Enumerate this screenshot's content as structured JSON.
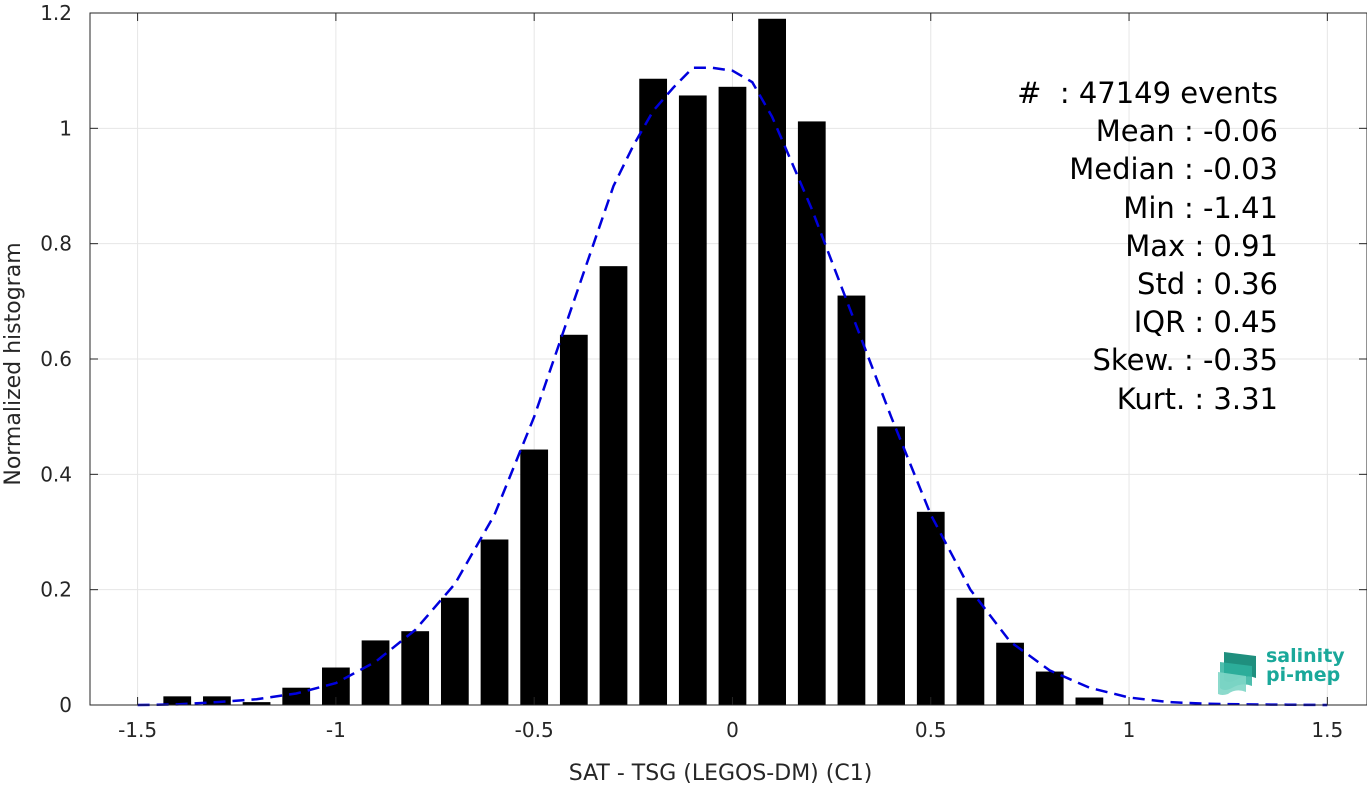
{
  "chart_data": {
    "type": "bar",
    "xlabel": "SAT - TSG (LEGOS-DM) (C1)",
    "ylabel": "Normalized histogram",
    "xlim": [
      -1.62,
      1.6
    ],
    "ylim": [
      0,
      1.2
    ],
    "xticks": [
      -1.5,
      -1,
      -0.5,
      0,
      0.5,
      1,
      1.5
    ],
    "xtick_labels": [
      "-1.5",
      "-1",
      "-0.5",
      "0",
      "0.5",
      "1",
      "1.5"
    ],
    "yticks": [
      0,
      0.2,
      0.4,
      0.6,
      0.8,
      1,
      1.2
    ],
    "ytick_labels": [
      "0",
      "0.2",
      "0.4",
      "0.6",
      "0.8",
      "1",
      "1.2"
    ],
    "grid": true,
    "bar_width": 0.07,
    "bars": {
      "x": [
        -1.4,
        -1.3,
        -1.2,
        -1.1,
        -1.0,
        -0.9,
        -0.8,
        -0.7,
        -0.6,
        -0.5,
        -0.4,
        -0.3,
        -0.2,
        -0.1,
        0.0,
        0.1,
        0.2,
        0.3,
        0.4,
        0.5,
        0.6,
        0.7,
        0.8,
        0.9
      ],
      "values": [
        0.015,
        0.015,
        0.005,
        0.03,
        0.065,
        0.112,
        0.128,
        0.186,
        0.287,
        0.443,
        0.642,
        0.761,
        1.086,
        1.057,
        1.072,
        1.19,
        1.012,
        0.71,
        0.483,
        0.335,
        0.186,
        0.108,
        0.058,
        0.013
      ],
      "color": "#000000"
    },
    "fit_curve": {
      "style": "dashed",
      "color": "#0000dd",
      "x": [
        -1.5,
        -1.4,
        -1.3,
        -1.2,
        -1.1,
        -1.0,
        -0.9,
        -0.8,
        -0.7,
        -0.6,
        -0.5,
        -0.4,
        -0.3,
        -0.25,
        -0.2,
        -0.15,
        -0.1,
        -0.05,
        0.0,
        0.05,
        0.1,
        0.15,
        0.2,
        0.25,
        0.3,
        0.4,
        0.5,
        0.6,
        0.7,
        0.8,
        0.9,
        1.0,
        1.1,
        1.2,
        1.3,
        1.4,
        1.5
      ],
      "values": [
        0.0,
        0.001,
        0.005,
        0.01,
        0.02,
        0.038,
        0.075,
        0.13,
        0.21,
        0.33,
        0.5,
        0.7,
        0.9,
        0.97,
        1.03,
        1.07,
        1.105,
        1.105,
        1.1,
        1.08,
        1.02,
        0.94,
        0.86,
        0.77,
        0.68,
        0.5,
        0.33,
        0.2,
        0.11,
        0.06,
        0.03,
        0.013,
        0.005,
        0.002,
        0.001,
        0.0005,
        0.0
      ]
    }
  },
  "stats": [
    "#  : 47149 events",
    "Mean : -0.06",
    "Median : -0.03",
    "Min : -1.41",
    "Max : 0.91",
    "Std : 0.36",
    "IQR : 0.45",
    "Skew. : -0.35",
    "Kurt. : 3.31"
  ],
  "logo": {
    "line1": "salinity",
    "line2": "pi-mep",
    "color": "#1aa89a"
  }
}
